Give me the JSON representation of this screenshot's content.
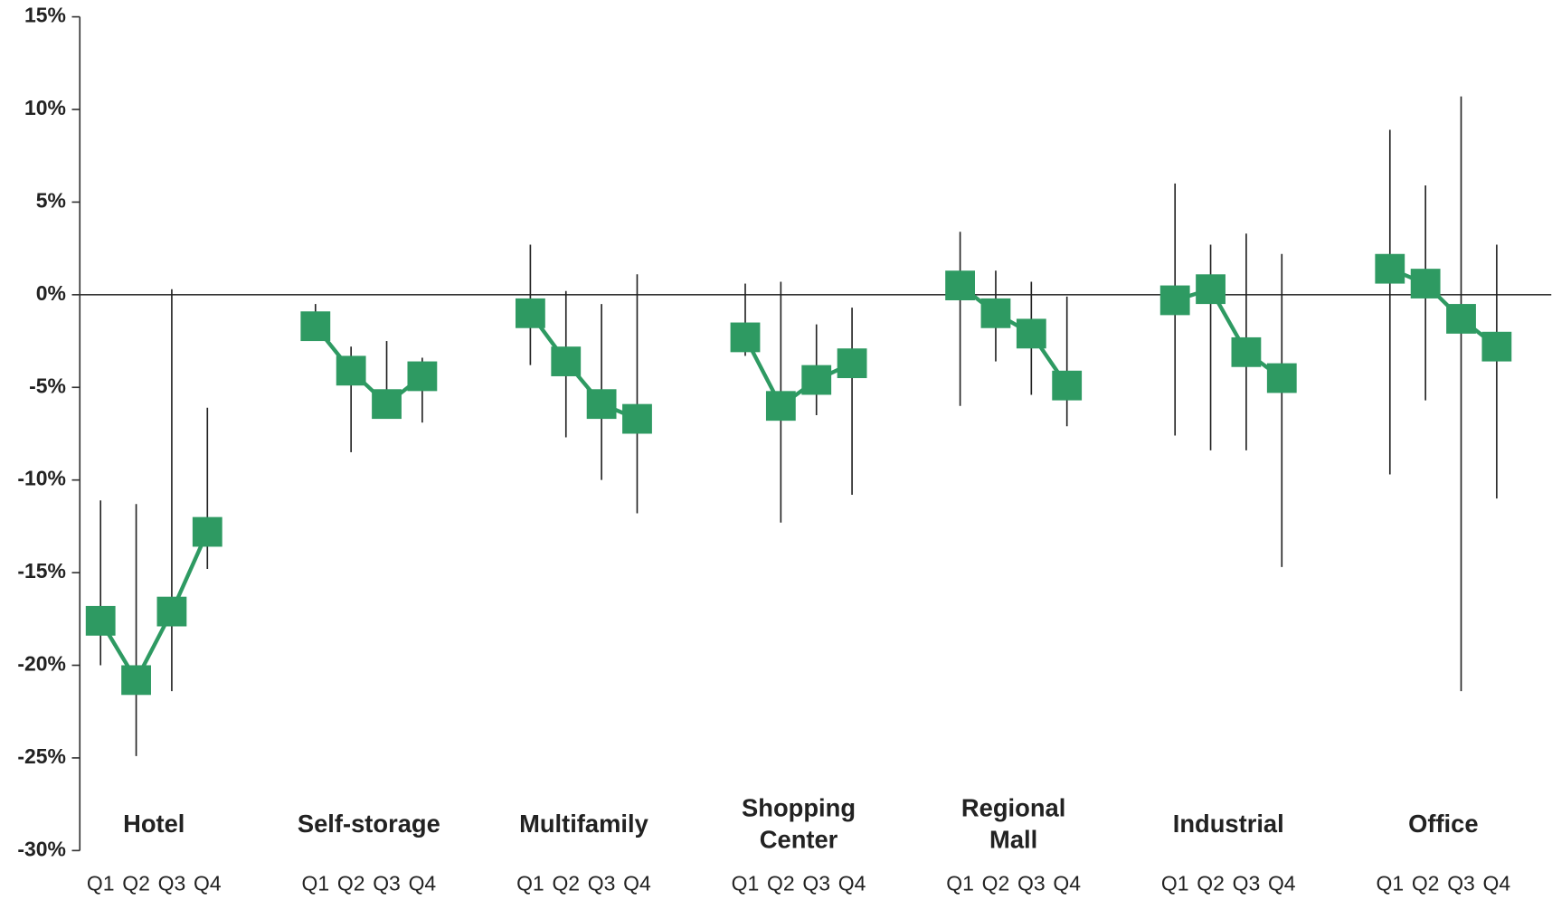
{
  "chart_data": {
    "type": "range-dot",
    "quarters": [
      "Q1",
      "Q2",
      "Q3",
      "Q4"
    ],
    "color": "#2e9a62",
    "ylim": [
      -30,
      15
    ],
    "yticks": [
      {
        "value": -30,
        "label": "-30%"
      },
      {
        "value": -25,
        "label": "-25%"
      },
      {
        "value": -20,
        "label": "-20%"
      },
      {
        "value": -15,
        "label": "-15%"
      },
      {
        "value": -10,
        "label": "-10%"
      },
      {
        "value": -5,
        "label": "-5%"
      },
      {
        "value": 0,
        "label": "0%"
      },
      {
        "value": 5,
        "label": "5%"
      },
      {
        "value": 10,
        "label": "10%"
      },
      {
        "value": 15,
        "label": "15%"
      }
    ],
    "groups": [
      {
        "name": "Hotel",
        "values": [
          -17.6,
          -20.8,
          -17.1,
          -12.8
        ],
        "low": [
          -20.0,
          -24.9,
          -21.4,
          -14.8
        ],
        "high": [
          -11.1,
          -11.3,
          0.3,
          -6.1
        ]
      },
      {
        "name": "Self-storage",
        "values": [
          -1.7,
          -4.1,
          -5.9,
          -4.4
        ],
        "low": [
          -2.2,
          -8.5,
          -6.5,
          -6.9
        ],
        "high": [
          -0.5,
          -2.8,
          -2.5,
          -3.4
        ]
      },
      {
        "name": "Multifamily",
        "values": [
          -1.0,
          -3.6,
          -5.9,
          -6.7
        ],
        "low": [
          -3.8,
          -7.7,
          -10.0,
          -11.8
        ],
        "high": [
          2.7,
          0.2,
          -0.5,
          1.1
        ]
      },
      {
        "name": "Shopping\nCenter",
        "values": [
          -2.3,
          -6.0,
          -4.6,
          -3.7
        ],
        "low": [
          -3.3,
          -12.3,
          -6.5,
          -10.8
        ],
        "high": [
          0.6,
          0.7,
          -1.6,
          -0.7
        ]
      },
      {
        "name": "Regional\nMall",
        "values": [
          0.5,
          -1.0,
          -2.1,
          -4.9
        ],
        "low": [
          -6.0,
          -3.6,
          -5.4,
          -7.1
        ],
        "high": [
          3.4,
          1.3,
          0.7,
          -0.1
        ]
      },
      {
        "name": "Industrial",
        "values": [
          -0.3,
          0.3,
          -3.1,
          -4.5
        ],
        "low": [
          -7.6,
          -8.4,
          -8.4,
          -14.7
        ],
        "high": [
          6.0,
          2.7,
          3.3,
          2.2
        ]
      },
      {
        "name": "Office",
        "values": [
          1.4,
          0.6,
          -1.3,
          -2.8
        ],
        "low": [
          -9.7,
          -5.7,
          -21.4,
          -11.0
        ],
        "high": [
          8.9,
          5.9,
          10.7,
          2.7
        ]
      }
    ]
  }
}
